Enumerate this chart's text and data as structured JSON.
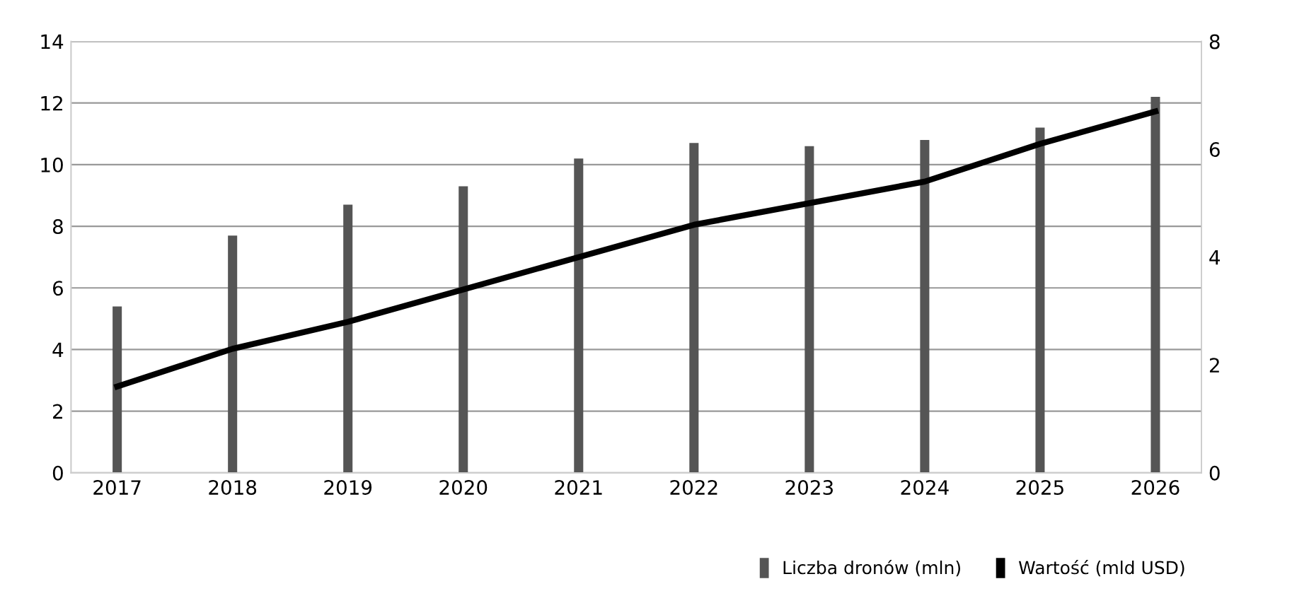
{
  "chart_data": {
    "type": "bar",
    "categories": [
      "2017",
      "2018",
      "2019",
      "2020",
      "2021",
      "2022",
      "2023",
      "2024",
      "2025",
      "2026"
    ],
    "series": [
      {
        "name": "Liczba dronów (mln)",
        "color": "#555555",
        "values": [
          5.4,
          7.7,
          8.7,
          9.3,
          10.2,
          10.7,
          10.6,
          10.8,
          11.2,
          12.2
        ]
      },
      {
        "name": "Wartość (mld USD)",
        "type": "line",
        "axis": "y2",
        "color": "#000000",
        "values": [
          1.6,
          2.3,
          2.8,
          3.4,
          4.0,
          4.6,
          5.0,
          5.4,
          6.1,
          6.7
        ]
      }
    ],
    "ylim": [
      0,
      14
    ],
    "yticks": [
      0,
      2,
      4,
      6,
      8,
      10,
      12,
      14
    ],
    "y2lim": [
      0,
      8
    ],
    "y2ticks": [
      0,
      2,
      4,
      6,
      8
    ],
    "grid": "y",
    "legend": "bottom right",
    "marker": "none",
    "line_style": "solid"
  }
}
